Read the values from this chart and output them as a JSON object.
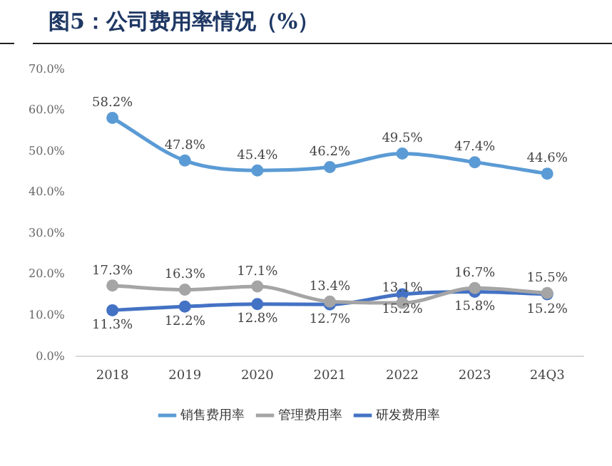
{
  "chart_data": {
    "type": "line",
    "title": "图5：公司费用率情况（%）",
    "categories": [
      "2018",
      "2019",
      "2020",
      "2021",
      "2022",
      "2023",
      "24Q3"
    ],
    "series": [
      {
        "name": "销售费用率",
        "color": "#5b9bd5",
        "values": [
          58.2,
          47.8,
          45.4,
          46.2,
          49.5,
          47.4,
          44.6
        ],
        "value_labels": [
          "58.2%",
          "47.8%",
          "45.4%",
          "46.2%",
          "49.5%",
          "47.4%",
          "44.6%"
        ]
      },
      {
        "name": "管理费用率",
        "color": "#a5a5a5",
        "values": [
          17.3,
          16.3,
          17.1,
          13.4,
          13.1,
          16.7,
          15.5
        ],
        "value_labels": [
          "17.3%",
          "16.3%",
          "17.1%",
          "13.4%",
          "13.1%",
          "16.7%",
          "15.5%"
        ]
      },
      {
        "name": "研发费用率",
        "color": "#4472c4",
        "values": [
          11.3,
          12.2,
          12.8,
          12.7,
          15.2,
          15.8,
          15.2
        ],
        "value_labels": [
          "11.3%",
          "12.2%",
          "12.8%",
          "12.7%",
          "15.2%",
          "15.8%",
          "15.2%"
        ]
      }
    ],
    "ylim": [
      0,
      70
    ],
    "yticks": [
      {
        "value": 0,
        "label": "0.0%"
      },
      {
        "value": 10,
        "label": "10.0%"
      },
      {
        "value": 20,
        "label": "20.0%"
      },
      {
        "value": 30,
        "label": "30.0%"
      },
      {
        "value": 40,
        "label": "40.0%"
      },
      {
        "value": 50,
        "label": "50.0%"
      },
      {
        "value": 60,
        "label": "60.0%"
      },
      {
        "value": 70,
        "label": "70.0%"
      }
    ],
    "grid": false,
    "legend": "bottom",
    "marker": "circle",
    "line_style": "solid"
  }
}
